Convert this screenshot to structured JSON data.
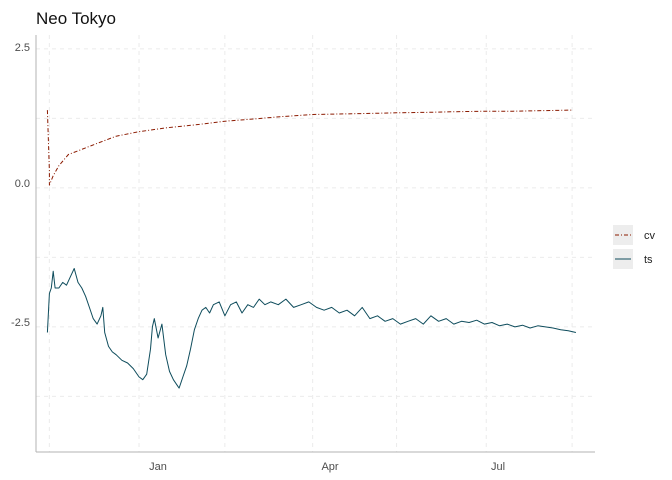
{
  "chart_data": {
    "type": "line",
    "title": "Neo Tokyo",
    "xlabel": "",
    "ylabel": "",
    "x_ticks": [
      "Jan",
      "Apr",
      "Jul"
    ],
    "y_ticks": [
      "2.5",
      "0.0",
      "-2.5"
    ],
    "xlim": [
      "2019-11-08",
      "2020-08-27"
    ],
    "ylim": [
      -4.75,
      2.75
    ],
    "grid": true,
    "legend_position": "right",
    "series": [
      {
        "name": "cv",
        "color": "#8B1A00",
        "dash": "dashdot",
        "points": [
          [
            "2019-11-14",
            1.4
          ],
          [
            "2019-11-15",
            0.3
          ],
          [
            "2019-11-15",
            0.05
          ],
          [
            "2019-11-17",
            0.22
          ],
          [
            "2019-11-20",
            0.4
          ],
          [
            "2019-11-25",
            0.6
          ],
          [
            "2019-12-01",
            0.68
          ],
          [
            "2019-12-10",
            0.8
          ],
          [
            "2019-12-20",
            0.93
          ],
          [
            "2020-01-01",
            1.01
          ],
          [
            "2020-01-15",
            1.08
          ],
          [
            "2020-02-01",
            1.14
          ],
          [
            "2020-02-15",
            1.2
          ],
          [
            "2020-03-01",
            1.24
          ],
          [
            "2020-03-15",
            1.28
          ],
          [
            "2020-04-01",
            1.32
          ],
          [
            "2020-04-15",
            1.33
          ],
          [
            "2020-05-01",
            1.34
          ],
          [
            "2020-05-15",
            1.35
          ],
          [
            "2020-06-01",
            1.36
          ],
          [
            "2020-06-15",
            1.37
          ],
          [
            "2020-07-01",
            1.38
          ],
          [
            "2020-07-15",
            1.38
          ],
          [
            "2020-08-01",
            1.39
          ],
          [
            "2020-08-15",
            1.4
          ]
        ]
      },
      {
        "name": "ts",
        "color": "#0E4C5C",
        "dash": "solid",
        "points": [
          [
            "2019-11-14",
            -2.6
          ],
          [
            "2019-11-15",
            -1.9
          ],
          [
            "2019-11-16",
            -1.8
          ],
          [
            "2019-11-17",
            -1.5
          ],
          [
            "2019-11-18",
            -1.8
          ],
          [
            "2019-11-20",
            -1.8
          ],
          [
            "2019-11-22",
            -1.7
          ],
          [
            "2019-11-24",
            -1.75
          ],
          [
            "2019-11-26",
            -1.6
          ],
          [
            "2019-11-28",
            -1.45
          ],
          [
            "2019-11-30",
            -1.7
          ],
          [
            "2019-12-02",
            -1.8
          ],
          [
            "2019-12-04",
            -1.95
          ],
          [
            "2019-12-06",
            -2.15
          ],
          [
            "2019-12-08",
            -2.35
          ],
          [
            "2019-12-10",
            -2.45
          ],
          [
            "2019-12-12",
            -2.3
          ],
          [
            "2019-12-13",
            -2.15
          ],
          [
            "2019-12-14",
            -2.6
          ],
          [
            "2019-12-16",
            -2.85
          ],
          [
            "2019-12-18",
            -2.95
          ],
          [
            "2019-12-20",
            -3.0
          ],
          [
            "2019-12-23",
            -3.1
          ],
          [
            "2019-12-26",
            -3.15
          ],
          [
            "2019-12-29",
            -3.25
          ],
          [
            "2020-01-01",
            -3.4
          ],
          [
            "2020-01-03",
            -3.45
          ],
          [
            "2020-01-05",
            -3.35
          ],
          [
            "2020-01-07",
            -2.9
          ],
          [
            "2020-01-08",
            -2.5
          ],
          [
            "2020-01-09",
            -2.35
          ],
          [
            "2020-01-11",
            -2.7
          ],
          [
            "2020-01-13",
            -2.45
          ],
          [
            "2020-01-15",
            -3.0
          ],
          [
            "2020-01-17",
            -3.3
          ],
          [
            "2020-01-19",
            -3.45
          ],
          [
            "2020-01-21",
            -3.55
          ],
          [
            "2020-01-22",
            -3.6
          ],
          [
            "2020-01-24",
            -3.4
          ],
          [
            "2020-01-26",
            -3.2
          ],
          [
            "2020-01-28",
            -2.9
          ],
          [
            "2020-01-30",
            -2.55
          ],
          [
            "2020-02-01",
            -2.35
          ],
          [
            "2020-02-03",
            -2.2
          ],
          [
            "2020-02-05",
            -2.15
          ],
          [
            "2020-02-07",
            -2.25
          ],
          [
            "2020-02-09",
            -2.1
          ],
          [
            "2020-02-12",
            -2.05
          ],
          [
            "2020-02-15",
            -2.3
          ],
          [
            "2020-02-18",
            -2.1
          ],
          [
            "2020-02-21",
            -2.05
          ],
          [
            "2020-02-24",
            -2.25
          ],
          [
            "2020-02-27",
            -2.1
          ],
          [
            "2020-03-01",
            -2.15
          ],
          [
            "2020-03-04",
            -2.0
          ],
          [
            "2020-03-07",
            -2.1
          ],
          [
            "2020-03-10",
            -2.05
          ],
          [
            "2020-03-14",
            -2.1
          ],
          [
            "2020-03-18",
            -2.0
          ],
          [
            "2020-03-22",
            -2.15
          ],
          [
            "2020-03-26",
            -2.1
          ],
          [
            "2020-03-30",
            -2.05
          ],
          [
            "2020-04-03",
            -2.15
          ],
          [
            "2020-04-07",
            -2.2
          ],
          [
            "2020-04-11",
            -2.15
          ],
          [
            "2020-04-15",
            -2.25
          ],
          [
            "2020-04-19",
            -2.2
          ],
          [
            "2020-04-23",
            -2.3
          ],
          [
            "2020-04-27",
            -2.15
          ],
          [
            "2020-05-01",
            -2.35
          ],
          [
            "2020-05-05",
            -2.3
          ],
          [
            "2020-05-09",
            -2.4
          ],
          [
            "2020-05-13",
            -2.35
          ],
          [
            "2020-05-17",
            -2.45
          ],
          [
            "2020-05-21",
            -2.4
          ],
          [
            "2020-05-25",
            -2.35
          ],
          [
            "2020-05-29",
            -2.45
          ],
          [
            "2020-06-02",
            -2.3
          ],
          [
            "2020-06-06",
            -2.4
          ],
          [
            "2020-06-10",
            -2.35
          ],
          [
            "2020-06-14",
            -2.45
          ],
          [
            "2020-06-18",
            -2.4
          ],
          [
            "2020-06-22",
            -2.42
          ],
          [
            "2020-06-26",
            -2.38
          ],
          [
            "2020-06-30",
            -2.45
          ],
          [
            "2020-07-04",
            -2.42
          ],
          [
            "2020-07-08",
            -2.48
          ],
          [
            "2020-07-12",
            -2.45
          ],
          [
            "2020-07-16",
            -2.5
          ],
          [
            "2020-07-20",
            -2.47
          ],
          [
            "2020-07-24",
            -2.52
          ],
          [
            "2020-07-28",
            -2.48
          ],
          [
            "2020-08-01",
            -2.5
          ],
          [
            "2020-08-05",
            -2.52
          ],
          [
            "2020-08-09",
            -2.55
          ],
          [
            "2020-08-13",
            -2.57
          ],
          [
            "2020-08-17",
            -2.6
          ]
        ]
      }
    ]
  }
}
